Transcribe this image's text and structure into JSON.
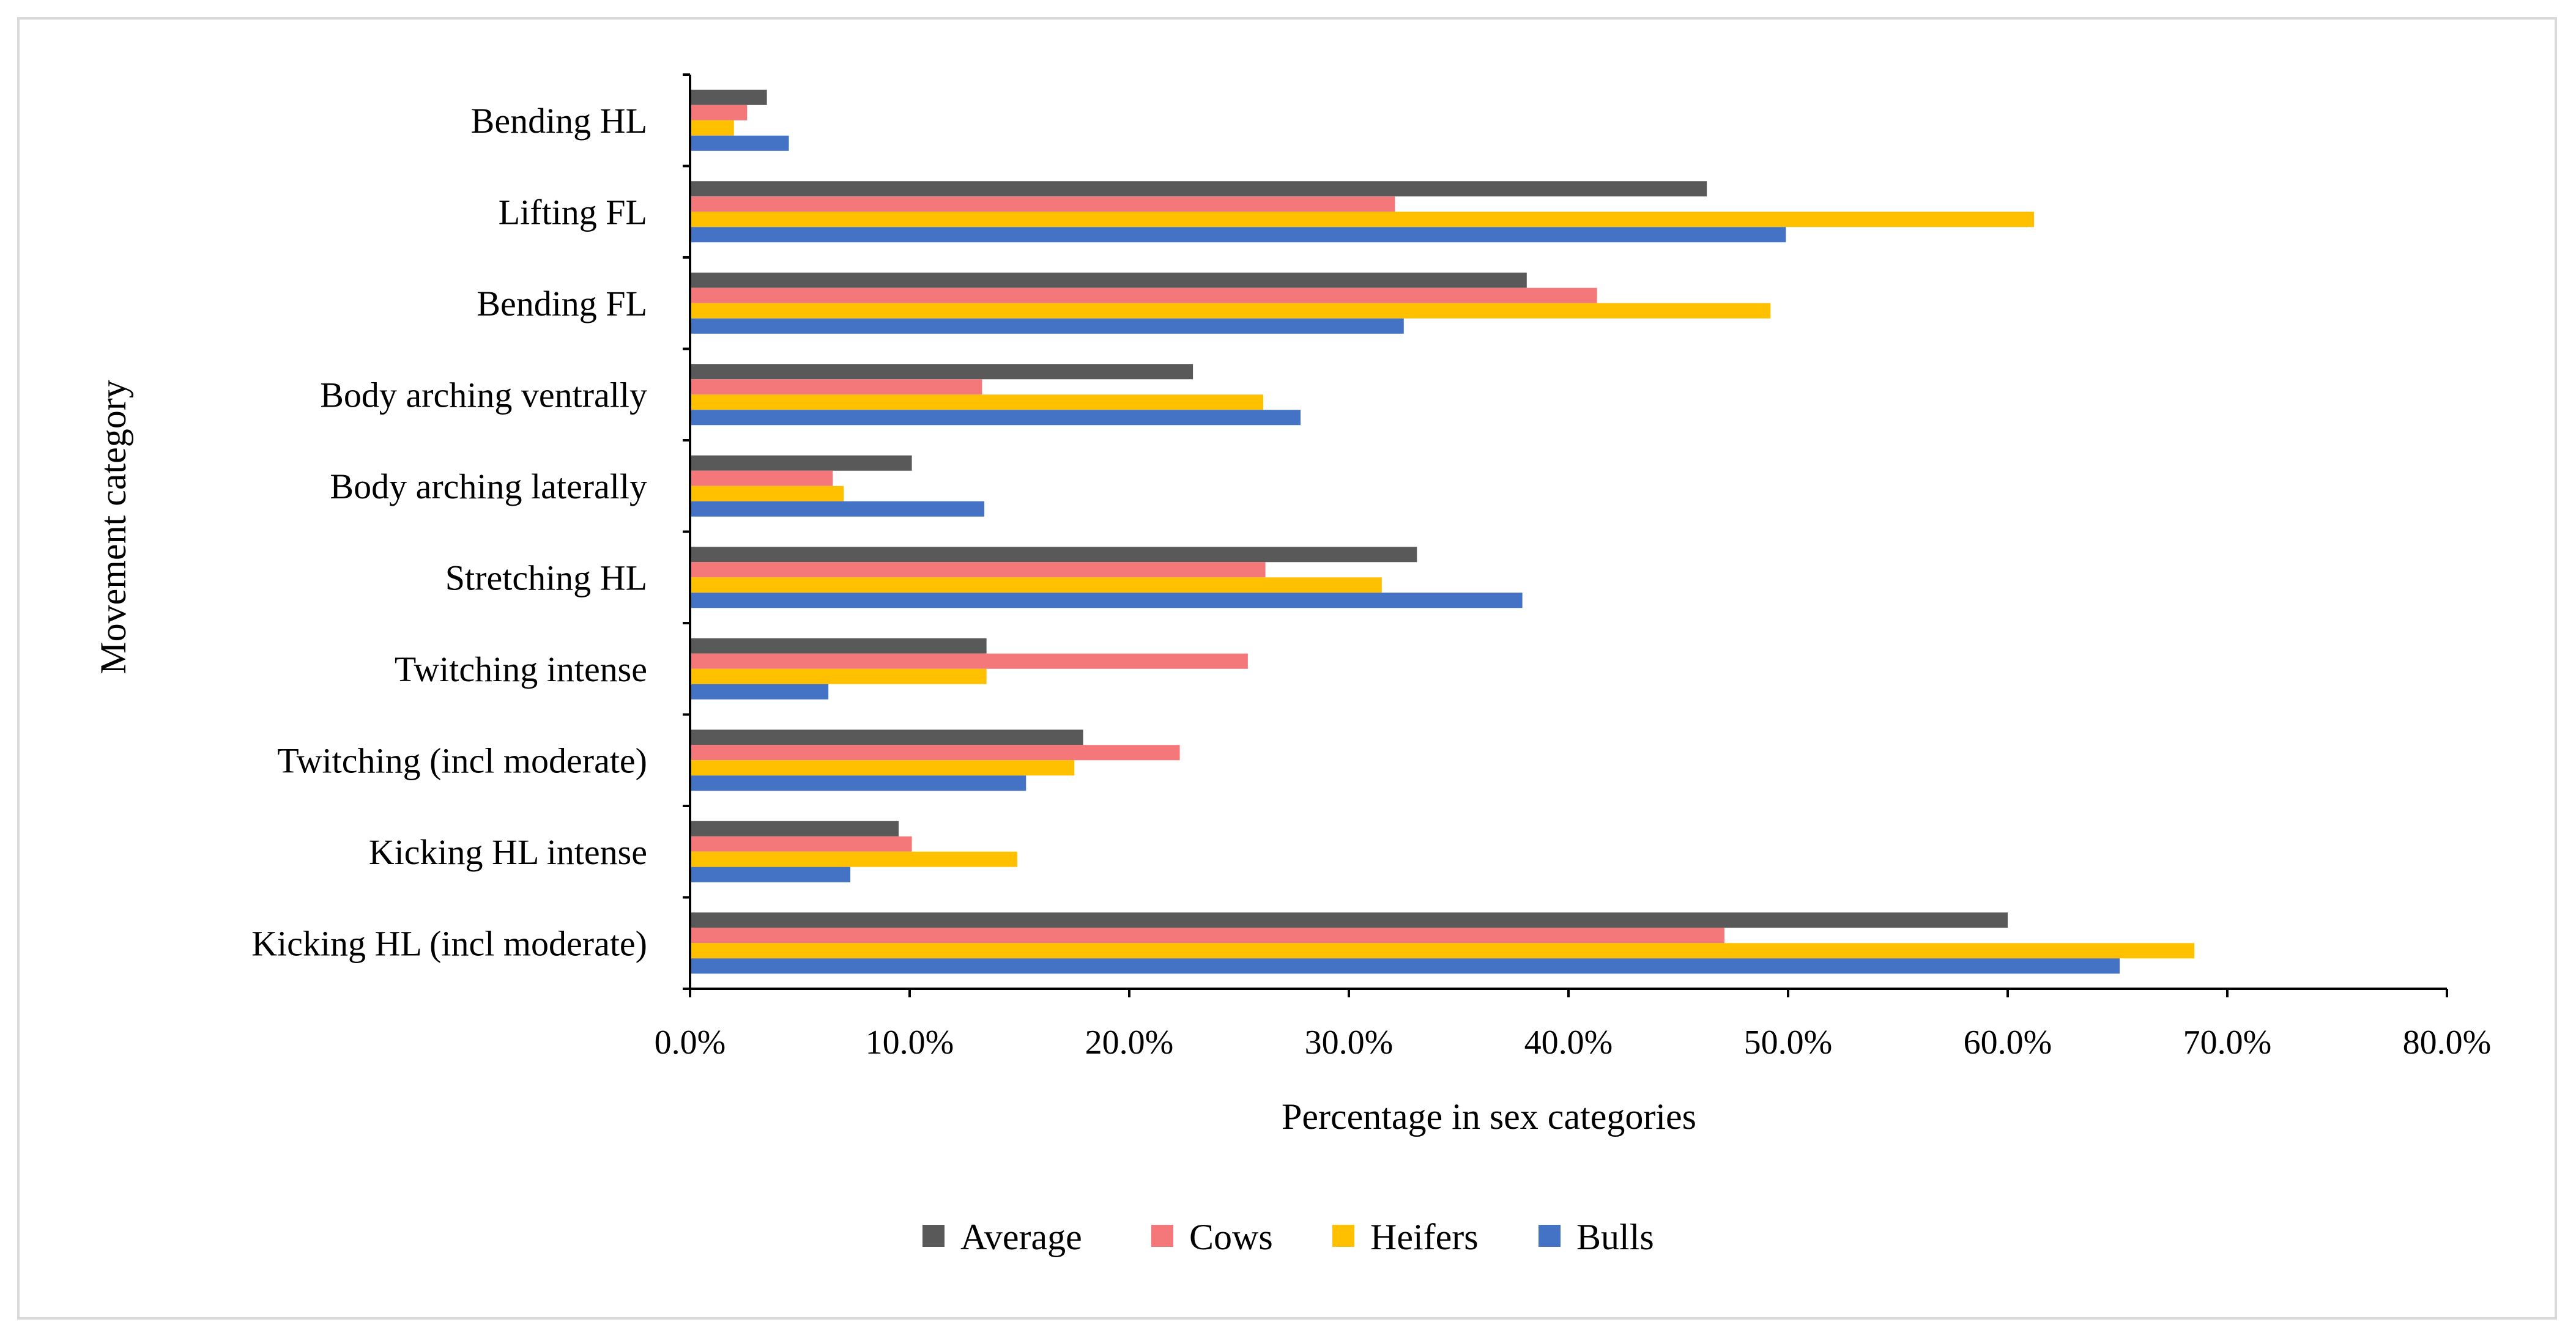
{
  "chart_data": {
    "type": "bar",
    "orientation": "horizontal",
    "title": "",
    "xlabel": "Percentage in sex categories",
    "ylabel": "Movement category",
    "xlim": [
      0,
      80
    ],
    "xticks": [
      "0.0%",
      "10.0%",
      "20.0%",
      "30.0%",
      "40.0%",
      "50.0%",
      "60.0%",
      "70.0%",
      "80.0%"
    ],
    "categories": [
      "Bending HL",
      "Lifting FL",
      "Bending FL",
      "Body arching ventrally",
      "Body arching laterally",
      "Stretching HL",
      "Twitching intense",
      "Twitching (incl moderate)",
      "Kicking HL intense",
      "Kicking HL (incl moderate)"
    ],
    "series": [
      {
        "name": "Average",
        "color": "#595959",
        "values": [
          3.5,
          46.3,
          38.1,
          22.9,
          10.1,
          33.1,
          13.5,
          17.9,
          9.5,
          60.0
        ]
      },
      {
        "name": "Cows",
        "color": "#f4787a",
        "values": [
          2.6,
          32.1,
          41.3,
          13.3,
          6.5,
          26.2,
          25.4,
          22.3,
          10.1,
          47.1
        ]
      },
      {
        "name": "Heifers",
        "color": "#ffc000",
        "values": [
          2.0,
          61.2,
          49.2,
          26.1,
          7.0,
          31.5,
          13.5,
          17.5,
          14.9,
          68.5
        ]
      },
      {
        "name": "Bulls",
        "color": "#4472c4",
        "values": [
          4.5,
          49.9,
          32.5,
          27.8,
          13.4,
          37.9,
          6.3,
          15.3,
          7.3,
          65.1
        ]
      }
    ],
    "legend_position": "bottom",
    "grid": false
  }
}
